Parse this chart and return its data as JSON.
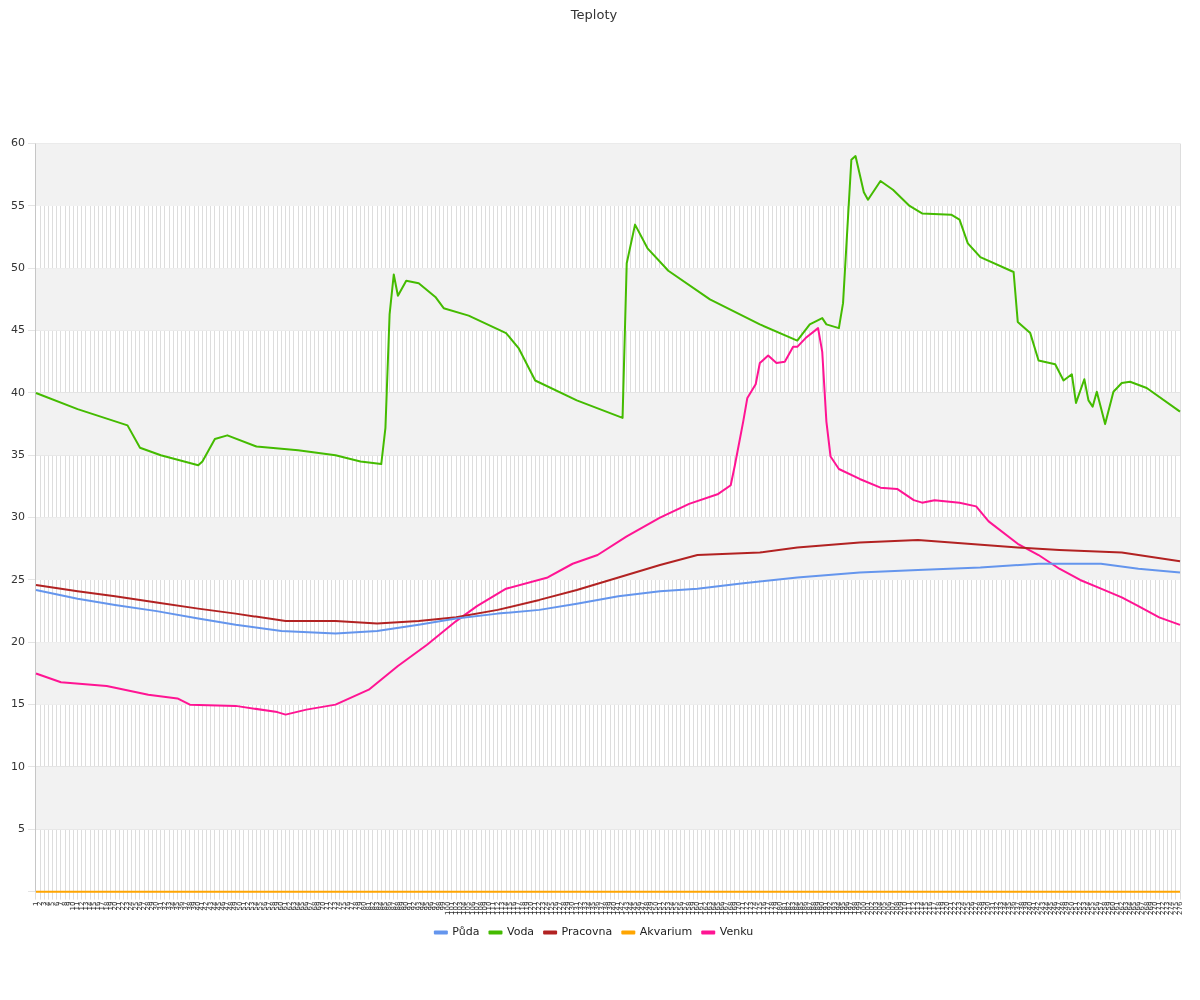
{
  "chart_data": {
    "type": "line",
    "title": "Teploty",
    "categories": [
      "1",
      "2",
      "3",
      "4",
      "5",
      "6",
      "7",
      "8",
      "9",
      "10",
      "11",
      "12",
      "13",
      "14",
      "15",
      "16",
      "17",
      "18",
      "19",
      "20",
      "21",
      "22",
      "23",
      "24",
      "25",
      "26",
      "27",
      "28",
      "29",
      "30",
      "31",
      "32",
      "33",
      "34",
      "35",
      "36",
      "37",
      "38",
      "39",
      "40",
      "41",
      "42",
      "43",
      "44",
      "45",
      "46",
      "47",
      "48",
      "49",
      "50",
      "51",
      "52",
      "53",
      "54",
      "55",
      "56",
      "57",
      "58",
      "59",
      "60",
      "61",
      "62",
      "63",
      "64",
      "65",
      "66",
      "67",
      "68",
      "69",
      "70",
      "71",
      "72",
      "73",
      "74",
      "75",
      "76",
      "77",
      "78",
      "79",
      "80",
      "81",
      "82",
      "83",
      "84",
      "85",
      "86",
      "87",
      "88",
      "89",
      "90",
      "91",
      "92",
      "93",
      "94",
      "95",
      "96",
      "97",
      "98",
      "99",
      "100",
      "101",
      "102",
      "103",
      "104",
      "105",
      "106",
      "107",
      "108",
      "109",
      "110",
      "111",
      "112",
      "113",
      "114",
      "115",
      "116",
      "117",
      "118",
      "119",
      "120",
      "121",
      "122",
      "123",
      "124",
      "125",
      "126",
      "127",
      "128",
      "129",
      "130",
      "131",
      "132",
      "133",
      "134",
      "135",
      "136",
      "137",
      "138",
      "139",
      "140",
      "141",
      "142",
      "143",
      "144",
      "145",
      "146",
      "147",
      "148",
      "149",
      "150",
      "151",
      "152",
      "153",
      "154",
      "155",
      "156",
      "157",
      "158",
      "159",
      "160",
      "161",
      "162",
      "163",
      "164",
      "165",
      "166",
      "167",
      "168",
      "169",
      "170",
      "171",
      "172",
      "173",
      "174",
      "175",
      "176",
      "177",
      "178",
      "179",
      "180",
      "181",
      "182",
      "183",
      "184",
      "185",
      "186",
      "187",
      "188",
      "189",
      "190",
      "191",
      "192",
      "193",
      "194",
      "195",
      "196",
      "197",
      "198",
      "199",
      "200",
      "201",
      "202",
      "203",
      "204",
      "205",
      "206",
      "207",
      "208",
      "209",
      "210",
      "211",
      "212",
      "213",
      "214",
      "215",
      "216",
      "217",
      "218",
      "219",
      "220",
      "221",
      "222",
      "223",
      "224",
      "225",
      "226",
      "227",
      "228",
      "229",
      "230",
      "231",
      "232",
      "233",
      "234",
      "235",
      "236",
      "237",
      "238",
      "239",
      "240",
      "241",
      "242",
      "243",
      "244",
      "245",
      "246",
      "247",
      "248",
      "249",
      "250",
      "251",
      "252",
      "253",
      "254",
      "255",
      "256",
      "257",
      "258",
      "259",
      "260",
      "261",
      "262",
      "263",
      "264",
      "265",
      "266",
      "267",
      "268",
      "269",
      "270",
      "271",
      "272",
      "273",
      "274",
      "275",
      "276"
    ],
    "series": [
      {
        "name": "Půda",
        "color": "#6495ed",
        "x": [
          "1",
          "11",
          "20",
          "30",
          "40",
          "49",
          "60",
          "73",
          "83",
          "93",
          "102",
          "112",
          "122",
          "131",
          "141",
          "151",
          "160",
          "170",
          "184",
          "199",
          "213",
          "228",
          "242",
          "257",
          "266",
          "276"
        ],
        "values": [
          24.2,
          23.5,
          23.0,
          22.5,
          21.9,
          21.4,
          20.9,
          20.7,
          20.9,
          21.4,
          21.9,
          22.3,
          22.6,
          23.1,
          23.7,
          24.1,
          24.3,
          24.7,
          25.2,
          25.6,
          25.8,
          26.0,
          26.3,
          26.3,
          25.9,
          25.6
        ]
      },
      {
        "name": "Voda",
        "color": "#44bb00",
        "x": [
          "1",
          "11",
          "23",
          "26",
          "31",
          "40",
          "41",
          "44",
          "47",
          "54",
          "64",
          "73",
          "79",
          "84",
          "85",
          "86",
          "87",
          "88",
          "90",
          "93",
          "97",
          "99",
          "105",
          "114",
          "117",
          "121",
          "131",
          "142",
          "143",
          "145",
          "148",
          "153",
          "163",
          "175",
          "184",
          "187",
          "190",
          "191",
          "194",
          "195",
          "197",
          "198",
          "200",
          "201",
          "204",
          "207",
          "211",
          "214",
          "221",
          "223",
          "225",
          "228",
          "236",
          "237",
          "240",
          "242",
          "246",
          "248",
          "250",
          "251",
          "253",
          "254",
          "255",
          "256",
          "258",
          "260",
          "262",
          "264",
          "268",
          "276"
        ],
        "values": [
          40.0,
          38.7,
          37.4,
          35.6,
          35.0,
          34.2,
          34.5,
          36.3,
          36.6,
          35.7,
          35.4,
          35.0,
          34.5,
          34.3,
          37.2,
          46.3,
          49.5,
          47.8,
          49.0,
          48.8,
          47.7,
          46.8,
          46.2,
          44.8,
          43.6,
          41.0,
          39.4,
          38.0,
          50.4,
          53.5,
          51.6,
          49.8,
          47.5,
          45.5,
          44.2,
          45.5,
          46.0,
          45.5,
          45.2,
          47.2,
          58.7,
          59.0,
          56.1,
          55.5,
          57.0,
          56.3,
          55.0,
          54.4,
          54.3,
          53.9,
          52.0,
          50.9,
          49.7,
          45.7,
          44.8,
          42.6,
          42.3,
          41.0,
          41.5,
          39.2,
          41.1,
          39.4,
          38.9,
          40.1,
          37.5,
          40.1,
          40.8,
          40.9,
          40.4,
          38.5
        ]
      },
      {
        "name": "Pracovna",
        "color": "#b22222",
        "x": [
          "1",
          "11",
          "20",
          "30",
          "40",
          "49",
          "61",
          "73",
          "83",
          "93",
          "102",
          "112",
          "122",
          "131",
          "141",
          "151",
          "160",
          "175",
          "184",
          "199",
          "213",
          "225",
          "237",
          "247",
          "262",
          "276"
        ],
        "values": [
          24.6,
          24.1,
          23.7,
          23.2,
          22.7,
          22.3,
          21.7,
          21.7,
          21.5,
          21.7,
          22.0,
          22.6,
          23.4,
          24.2,
          25.2,
          26.2,
          27.0,
          27.2,
          27.6,
          28.0,
          28.2,
          27.9,
          27.6,
          27.4,
          27.2,
          26.5
        ]
      },
      {
        "name": "Akvarium",
        "color": "#ffa500",
        "x": [
          "1",
          "276"
        ],
        "values": [
          0,
          0
        ]
      },
      {
        "name": "Venku",
        "color": "#ff1493",
        "x": [
          "1",
          "7",
          "18",
          "28",
          "35",
          "38",
          "49",
          "59",
          "61",
          "66",
          "73",
          "81",
          "88",
          "95",
          "102",
          "107",
          "114",
          "124",
          "130",
          "136",
          "143",
          "151",
          "158",
          "165",
          "168",
          "169",
          "171",
          "172",
          "174",
          "175",
          "177",
          "179",
          "181",
          "183",
          "184",
          "186",
          "189",
          "190",
          "191",
          "192",
          "194",
          "199",
          "204",
          "208",
          "212",
          "214",
          "217",
          "223",
          "227",
          "230",
          "237",
          "242",
          "247",
          "252",
          "257",
          "262",
          "266",
          "271",
          "276"
        ],
        "values": [
          17.5,
          16.8,
          16.5,
          15.8,
          15.5,
          15.0,
          14.9,
          14.4,
          14.2,
          14.6,
          15.0,
          16.2,
          18.1,
          19.8,
          21.7,
          22.9,
          24.3,
          25.2,
          26.3,
          27.0,
          28.5,
          30.0,
          31.1,
          31.9,
          32.6,
          34.2,
          37.7,
          39.6,
          40.7,
          42.4,
          43.0,
          42.4,
          42.5,
          43.7,
          43.7,
          44.4,
          45.2,
          43.3,
          37.7,
          34.9,
          33.9,
          33.1,
          32.4,
          32.3,
          31.4,
          31.2,
          31.4,
          31.2,
          30.9,
          29.7,
          27.9,
          27.0,
          25.9,
          25.0,
          24.3,
          23.6,
          22.9,
          22.0,
          21.4
        ]
      }
    ],
    "ylim": [
      0,
      60
    ],
    "yticks": [
      {
        "value": 0,
        "label": null
      },
      5,
      10,
      15,
      20,
      25,
      30,
      35,
      40,
      45,
      50,
      55,
      60
    ],
    "grid": true,
    "legend": "bottom",
    "marker": "none",
    "line_style": "solid"
  }
}
